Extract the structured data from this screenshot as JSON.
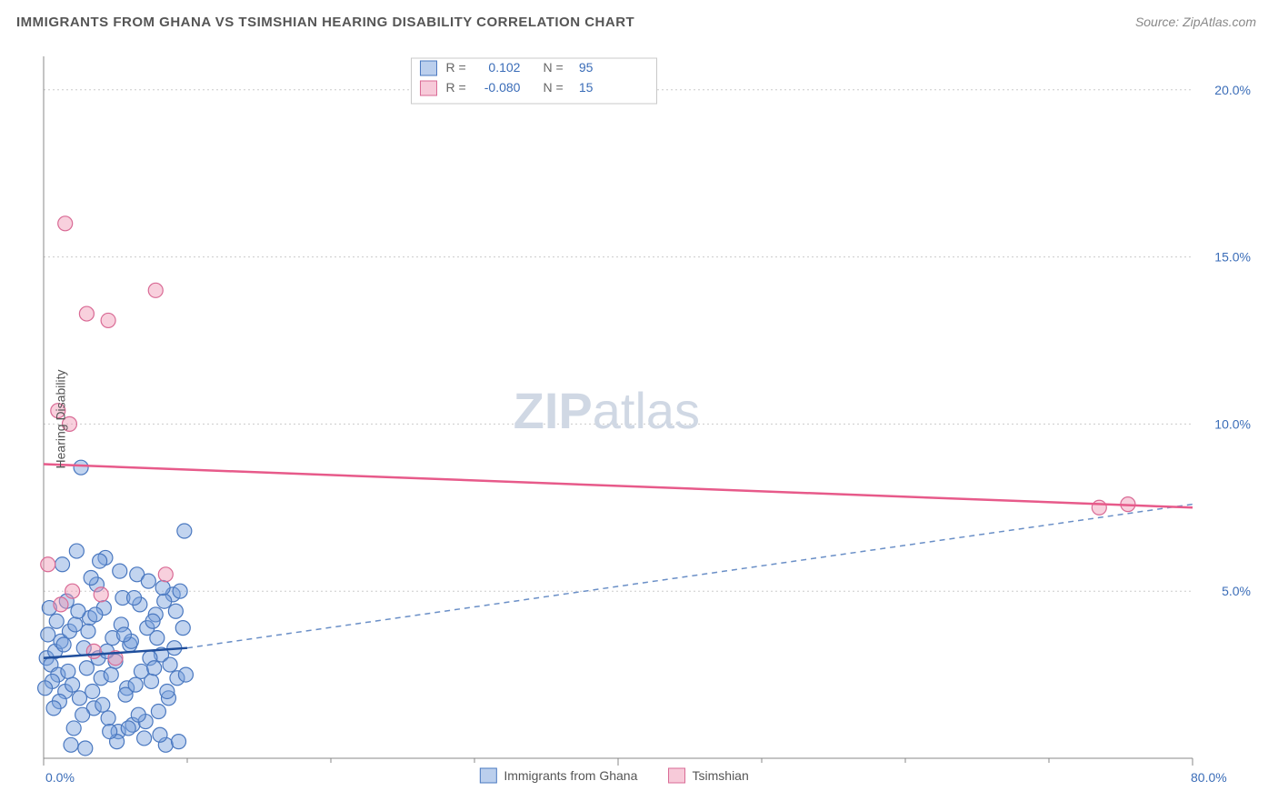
{
  "title": "IMMIGRANTS FROM GHANA VS TSIMSHIAN HEARING DISABILITY CORRELATION CHART",
  "source": "Source: ZipAtlas.com",
  "ylabel": "Hearing Disability",
  "watermark": {
    "bold": "ZIP",
    "light": "atlas"
  },
  "chart": {
    "type": "scatter",
    "xlim": [
      0,
      80
    ],
    "ylim": [
      0,
      21
    ],
    "x_ticks": [
      0,
      40,
      80
    ],
    "x_tick_labels": [
      "0.0%",
      "",
      "80.0%"
    ],
    "x_minor_ticks": [
      10,
      20,
      30,
      50,
      60,
      70
    ],
    "y_ticks": [
      5,
      10,
      15,
      20
    ],
    "y_tick_labels": [
      "5.0%",
      "10.0%",
      "15.0%",
      "20.0%"
    ],
    "grid_color": "#cccccc",
    "background_color": "#ffffff",
    "axis_color": "#888888",
    "point_radius": 8,
    "series": [
      {
        "name": "Immigrants from Ghana",
        "color_fill": "rgba(120,160,220,0.45)",
        "color_stroke": "#4a78c0",
        "R": "0.102",
        "N": "95",
        "trend_solid": {
          "x1": 0,
          "y1": 3.0,
          "x2": 10,
          "y2": 3.3
        },
        "trend_dashed": {
          "x1": 10,
          "y1": 3.3,
          "x2": 80,
          "y2": 7.6
        },
        "points": [
          [
            0.2,
            3.0
          ],
          [
            0.5,
            2.8
          ],
          [
            0.8,
            3.2
          ],
          [
            1.0,
            2.5
          ],
          [
            1.2,
            3.5
          ],
          [
            1.5,
            2.0
          ],
          [
            1.8,
            3.8
          ],
          [
            2.0,
            2.2
          ],
          [
            2.2,
            4.0
          ],
          [
            2.5,
            1.8
          ],
          [
            2.8,
            3.3
          ],
          [
            3.0,
            2.7
          ],
          [
            3.2,
            4.2
          ],
          [
            3.5,
            1.5
          ],
          [
            3.8,
            3.0
          ],
          [
            4.0,
            2.4
          ],
          [
            4.2,
            4.5
          ],
          [
            4.5,
            1.2
          ],
          [
            4.8,
            3.6
          ],
          [
            5.0,
            2.9
          ],
          [
            5.2,
            0.8
          ],
          [
            5.5,
            4.8
          ],
          [
            5.8,
            2.1
          ],
          [
            6.0,
            3.4
          ],
          [
            6.2,
            1.0
          ],
          [
            6.5,
            5.5
          ],
          [
            6.8,
            2.6
          ],
          [
            7.0,
            0.6
          ],
          [
            7.2,
            3.9
          ],
          [
            7.5,
            2.3
          ],
          [
            7.8,
            4.3
          ],
          [
            8.0,
            1.4
          ],
          [
            8.2,
            3.1
          ],
          [
            8.5,
            0.4
          ],
          [
            8.8,
            2.8
          ],
          [
            9.0,
            4.9
          ],
          [
            0.3,
            3.7
          ],
          [
            0.6,
            2.3
          ],
          [
            0.9,
            4.1
          ],
          [
            1.1,
            1.7
          ],
          [
            1.4,
            3.4
          ],
          [
            1.7,
            2.6
          ],
          [
            2.1,
            0.9
          ],
          [
            2.4,
            4.4
          ],
          [
            2.7,
            1.3
          ],
          [
            3.1,
            3.8
          ],
          [
            3.4,
            2.0
          ],
          [
            3.7,
            5.2
          ],
          [
            4.1,
            1.6
          ],
          [
            4.4,
            3.2
          ],
          [
            4.7,
            2.5
          ],
          [
            5.1,
            0.5
          ],
          [
            5.4,
            4.0
          ],
          [
            5.7,
            1.9
          ],
          [
            6.1,
            3.5
          ],
          [
            6.4,
            2.2
          ],
          [
            6.7,
            4.6
          ],
          [
            7.1,
            1.1
          ],
          [
            7.4,
            3.0
          ],
          [
            7.7,
            2.7
          ],
          [
            8.1,
            0.7
          ],
          [
            8.4,
            4.7
          ],
          [
            8.7,
            1.8
          ],
          [
            9.1,
            3.3
          ],
          [
            9.3,
            2.4
          ],
          [
            9.5,
            5.0
          ],
          [
            1.3,
            5.8
          ],
          [
            2.3,
            6.2
          ],
          [
            3.3,
            5.4
          ],
          [
            4.3,
            6.0
          ],
          [
            5.3,
            5.6
          ],
          [
            6.3,
            4.8
          ],
          [
            7.3,
            5.3
          ],
          [
            8.3,
            5.1
          ],
          [
            2.6,
            8.7
          ],
          [
            9.8,
            6.8
          ],
          [
            0.4,
            4.5
          ],
          [
            0.7,
            1.5
          ],
          [
            1.6,
            4.7
          ],
          [
            2.9,
            0.3
          ],
          [
            3.6,
            4.3
          ],
          [
            4.6,
            0.8
          ],
          [
            5.6,
            3.7
          ],
          [
            6.6,
            1.3
          ],
          [
            7.6,
            4.1
          ],
          [
            8.6,
            2.0
          ],
          [
            9.4,
            0.5
          ],
          [
            9.7,
            3.9
          ],
          [
            1.9,
            0.4
          ],
          [
            3.9,
            5.9
          ],
          [
            5.9,
            0.9
          ],
          [
            7.9,
            3.6
          ],
          [
            9.9,
            2.5
          ],
          [
            0.1,
            2.1
          ],
          [
            9.2,
            4.4
          ]
        ]
      },
      {
        "name": "Tsimshian",
        "color_fill": "rgba(240,150,180,0.45)",
        "color_stroke": "#d96a95",
        "R": "-0.080",
        "N": "15",
        "trend_solid": {
          "x1": 0,
          "y1": 8.8,
          "x2": 80,
          "y2": 7.5
        },
        "points": [
          [
            1.5,
            16.0
          ],
          [
            3.0,
            13.3
          ],
          [
            4.5,
            13.1
          ],
          [
            7.8,
            14.0
          ],
          [
            1.0,
            10.4
          ],
          [
            1.8,
            10.0
          ],
          [
            0.3,
            5.8
          ],
          [
            2.0,
            5.0
          ],
          [
            4.0,
            4.9
          ],
          [
            8.5,
            5.5
          ],
          [
            1.2,
            4.6
          ],
          [
            3.5,
            3.2
          ],
          [
            5.0,
            3.0
          ],
          [
            73.5,
            7.5
          ],
          [
            75.5,
            7.6
          ]
        ]
      }
    ],
    "top_legend": {
      "rows": [
        {
          "swatch": "blue",
          "R_label": "R =",
          "R_value": "0.102",
          "N_label": "N =",
          "N_value": "95"
        },
        {
          "swatch": "pink",
          "R_label": "R =",
          "R_value": "-0.080",
          "N_label": "N =",
          "N_value": "15"
        }
      ]
    },
    "bottom_legend": [
      {
        "swatch": "blue",
        "label": "Immigrants from Ghana"
      },
      {
        "swatch": "pink",
        "label": "Tsimshian"
      }
    ]
  }
}
